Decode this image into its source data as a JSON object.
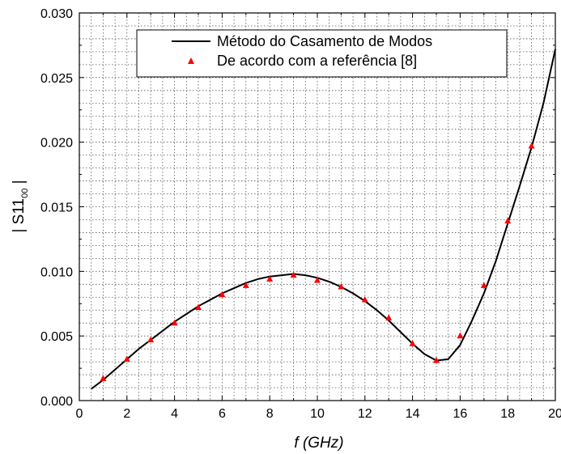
{
  "chart_data": {
    "type": "line",
    "xlabel": "f (GHz)",
    "ylabel_main": "| S11",
    "ylabel_sub": "00",
    "ylabel_end": " |",
    "xlim": [
      0,
      20
    ],
    "ylim": [
      0,
      0.03
    ],
    "x_ticks": [
      "0",
      "2",
      "4",
      "6",
      "8",
      "10",
      "12",
      "14",
      "16",
      "18",
      "20"
    ],
    "y_ticks": [
      "0.000",
      "0.005",
      "0.010",
      "0.015",
      "0.020",
      "0.025",
      "0.030"
    ],
    "grid": true,
    "grid_style": "dotted",
    "legend_position": "top",
    "series": [
      {
        "name": "Método do Casamento de Modos",
        "kind": "line",
        "color": "#000000",
        "x": [
          0.5,
          1,
          1.5,
          2,
          2.5,
          3,
          3.5,
          4,
          4.5,
          5,
          5.5,
          6,
          6.5,
          7,
          7.5,
          8,
          8.5,
          9,
          9.5,
          10,
          10.5,
          11,
          11.5,
          12,
          12.5,
          13,
          13.5,
          14,
          14.5,
          15,
          15.5,
          16,
          16.5,
          17,
          17.5,
          18,
          18.5,
          19,
          19.5,
          20
        ],
        "y": [
          0.0009,
          0.0016,
          0.0024,
          0.0032,
          0.004,
          0.0047,
          0.0054,
          0.0061,
          0.0067,
          0.0073,
          0.0078,
          0.0083,
          0.0087,
          0.0091,
          0.0094,
          0.0096,
          0.0097,
          0.0098,
          0.0097,
          0.0095,
          0.0092,
          0.0088,
          0.0083,
          0.0077,
          0.007,
          0.0062,
          0.0053,
          0.0044,
          0.0036,
          0.0031,
          0.0032,
          0.0043,
          0.0062,
          0.0083,
          0.0108,
          0.0137,
          0.0166,
          0.0196,
          0.023,
          0.0272
        ]
      },
      {
        "name": "De acordo com a referência [8]",
        "kind": "scatter",
        "marker": "triangle",
        "color": "#ff0000",
        "x": [
          1,
          2,
          3,
          4,
          5,
          6,
          7,
          8,
          9,
          10,
          11,
          12,
          13,
          14,
          15,
          16,
          17,
          18,
          19
        ],
        "y": [
          0.0017,
          0.0032,
          0.0047,
          0.006,
          0.0072,
          0.0082,
          0.0089,
          0.0094,
          0.0097,
          0.0093,
          0.0088,
          0.0078,
          0.0064,
          0.0044,
          0.0031,
          0.005,
          0.0089,
          0.0139,
          0.0197
        ]
      }
    ]
  }
}
